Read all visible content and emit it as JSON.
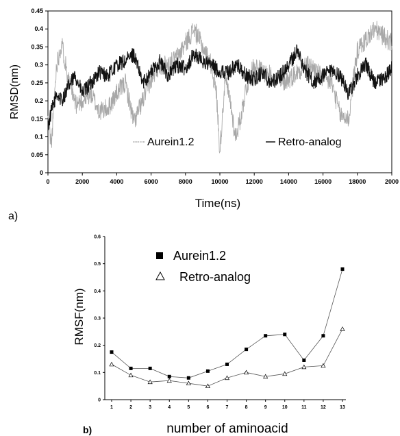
{
  "chart_data": [
    {
      "panel_label": "a)",
      "type": "line",
      "title": "",
      "xlabel": "Time(ns)",
      "ylabel": "RMSD(nm)",
      "xlim": [
        0,
        20000
      ],
      "ylim": [
        0,
        0.45
      ],
      "x_ticks": [
        "0",
        "2000",
        "4000",
        "6000",
        "8000",
        "10000",
        "12000",
        "14000",
        "16000",
        "18000",
        "2000"
      ],
      "y_ticks": [
        "0",
        "0.05",
        "0.1",
        "0.15",
        "0.2",
        "0.25",
        "0.3",
        "0.35",
        "0.4",
        "0.45"
      ],
      "grid": false,
      "legend_position": "bottom-right",
      "series": [
        {
          "name": "Aurein1.2",
          "color": "#a8a8a8",
          "x": [
            0,
            200,
            500,
            800,
            1200,
            1600,
            2000,
            2500,
            3000,
            3500,
            4000,
            4500,
            5000,
            5500,
            6000,
            6500,
            7000,
            7500,
            8000,
            8500,
            9000,
            9500,
            9800,
            10000,
            10300,
            10600,
            10900,
            11200,
            11500,
            12000,
            12500,
            13000,
            13500,
            14000,
            14500,
            15000,
            15500,
            16000,
            16500,
            17000,
            17500,
            17800,
            18000,
            18500,
            19000,
            19500,
            20000
          ],
          "values": [
            0.15,
            0.08,
            0.3,
            0.36,
            0.26,
            0.19,
            0.2,
            0.22,
            0.17,
            0.18,
            0.22,
            0.25,
            0.14,
            0.2,
            0.26,
            0.3,
            0.3,
            0.32,
            0.36,
            0.4,
            0.35,
            0.3,
            0.22,
            0.06,
            0.26,
            0.2,
            0.1,
            0.15,
            0.23,
            0.3,
            0.28,
            0.27,
            0.25,
            0.26,
            0.28,
            0.3,
            0.29,
            0.26,
            0.25,
            0.16,
            0.15,
            0.27,
            0.34,
            0.37,
            0.4,
            0.38,
            0.36
          ]
        },
        {
          "name": "Retro-analog",
          "color": "#111111",
          "x": [
            0,
            200,
            500,
            800,
            1200,
            1600,
            2000,
            2500,
            3000,
            3500,
            4000,
            4500,
            5000,
            5500,
            6000,
            6500,
            7000,
            7500,
            8000,
            8500,
            9000,
            9500,
            10000,
            10500,
            11000,
            11500,
            12000,
            12500,
            13000,
            13500,
            14000,
            14500,
            15000,
            15500,
            16000,
            16500,
            17000,
            17500,
            18000,
            18500,
            19000,
            19500,
            20000
          ],
          "values": [
            0.13,
            0.17,
            0.22,
            0.2,
            0.24,
            0.27,
            0.22,
            0.25,
            0.28,
            0.27,
            0.3,
            0.31,
            0.33,
            0.25,
            0.28,
            0.31,
            0.27,
            0.3,
            0.29,
            0.33,
            0.31,
            0.3,
            0.28,
            0.28,
            0.3,
            0.27,
            0.26,
            0.28,
            0.25,
            0.27,
            0.3,
            0.34,
            0.28,
            0.25,
            0.27,
            0.28,
            0.27,
            0.22,
            0.27,
            0.3,
            0.25,
            0.26,
            0.29
          ]
        }
      ]
    },
    {
      "panel_label": "b)",
      "type": "line",
      "title": "",
      "xlabel": "number of aminoacid",
      "ylabel": "RMSF(nm)",
      "ylim": [
        0,
        0.6
      ],
      "categories": [
        "1",
        "2",
        "3",
        "4",
        "5",
        "6",
        "7",
        "8",
        "9",
        "10",
        "11",
        "12",
        "13"
      ],
      "y_ticks": [
        "0",
        "0.1",
        "0.2",
        "0.3",
        "0.4",
        "0.5",
        "0.6"
      ],
      "grid": false,
      "legend_position": "top-left",
      "series": [
        {
          "name": "Aurein1.2",
          "marker": "filled-square",
          "color": "#000000",
          "values": [
            0.175,
            0.115,
            0.115,
            0.085,
            0.08,
            0.105,
            0.13,
            0.185,
            0.235,
            0.24,
            0.145,
            0.235,
            0.48
          ]
        },
        {
          "name": "Retro-analog",
          "marker": "open-triangle",
          "color": "#000000",
          "values": [
            0.13,
            0.09,
            0.065,
            0.07,
            0.06,
            0.05,
            0.08,
            0.1,
            0.085,
            0.095,
            0.12,
            0.125,
            0.26
          ]
        }
      ]
    }
  ]
}
